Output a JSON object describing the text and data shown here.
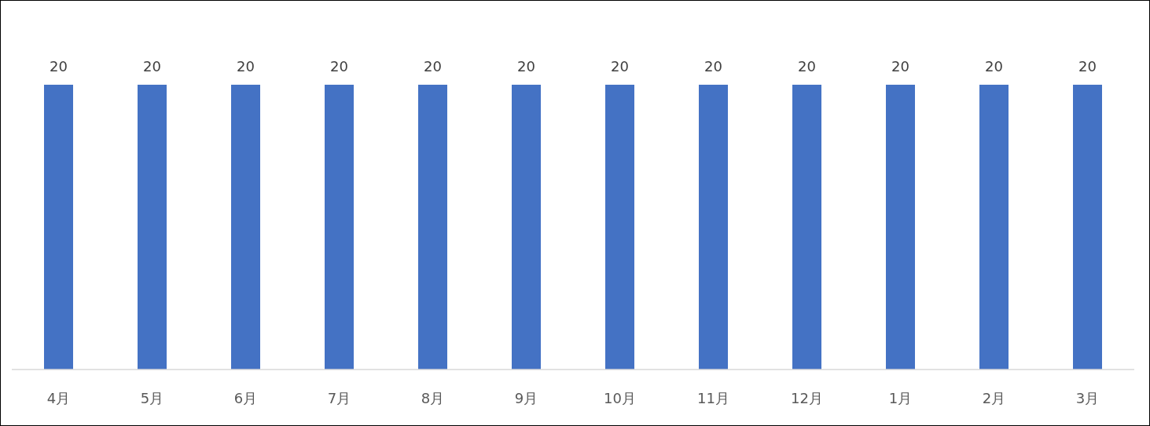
{
  "chart_data": {
    "type": "bar",
    "categories": [
      "4月",
      "5月",
      "6月",
      "7月",
      "8月",
      "9月",
      "10月",
      "11月",
      "12月",
      "1月",
      "2月",
      "3月"
    ],
    "values": [
      20,
      20,
      20,
      20,
      20,
      20,
      20,
      20,
      20,
      20,
      20,
      20
    ],
    "color": "#4472c4",
    "data_labels": true
  }
}
